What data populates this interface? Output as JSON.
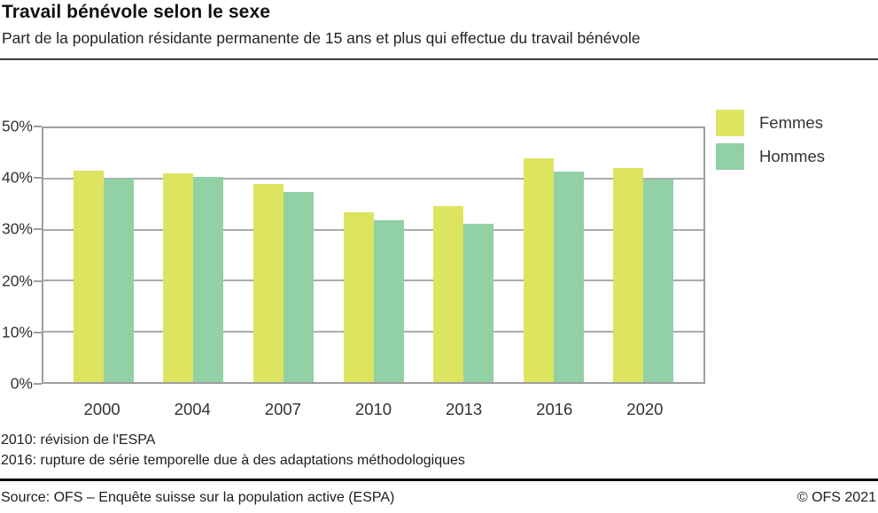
{
  "header": {
    "title": "Travail bénévole selon le sexe",
    "subtitle": "Part de la population résidante permanente de 15 ans et plus qui effectue du travail bénévole"
  },
  "chart_data": {
    "type": "bar",
    "categories": [
      "2000",
      "2004",
      "2007",
      "2010",
      "2013",
      "2016",
      "2020"
    ],
    "series": [
      {
        "name": "Femmes",
        "color": "#dde460",
        "values": [
          41.6,
          41.1,
          39.1,
          33.5,
          34.7,
          44.1,
          42.2
        ]
      },
      {
        "name": "Hommes",
        "color": "#92d0a5",
        "values": [
          40.0,
          40.4,
          37.4,
          31.8,
          31.2,
          41.4,
          39.9
        ]
      }
    ],
    "ylim": [
      0,
      50
    ],
    "ytick_step": 10,
    "ytick_labels_desc": [
      "50%",
      "40%",
      "30%",
      "20%",
      "10%",
      "0%"
    ],
    "grid": true,
    "legend_position": "top-right",
    "title": "Travail bénévole selon le sexe",
    "xlabel": "",
    "ylabel": ""
  },
  "footnotes": [
    "2010: révision de l'ESPA",
    "2016: rupture de série temporelle due à des adaptations méthodologiques"
  ],
  "footer": {
    "source": "Source: OFS – Enquête suisse sur la population active (ESPA)",
    "copyright": "© OFS 2021"
  }
}
